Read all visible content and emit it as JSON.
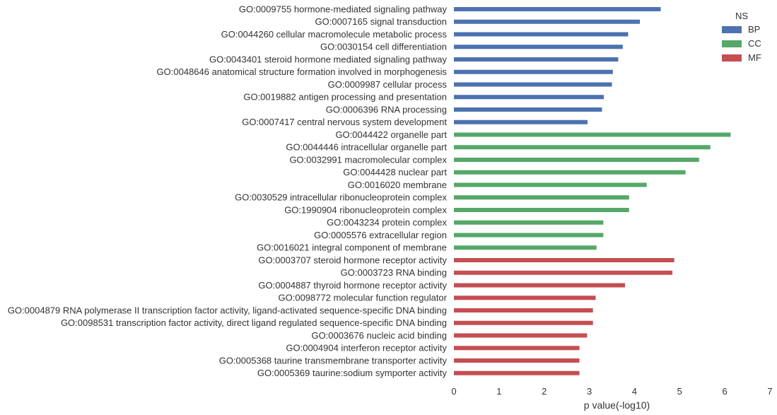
{
  "chart_data": {
    "type": "bar",
    "orientation": "horizontal",
    "xlabel": "p value(-log10)",
    "ylabel": "",
    "title": "",
    "xlim": [
      0,
      7
    ],
    "xticks": [
      "0",
      "1",
      "2",
      "3",
      "4",
      "5",
      "6",
      "7"
    ],
    "grid": false,
    "legend": {
      "title": "NS",
      "placement": "top-right",
      "entries": [
        {
          "name": "BP",
          "color": "#4c72b0"
        },
        {
          "name": "CC",
          "color": "#55a868"
        },
        {
          "name": "MF",
          "color": "#c44e52"
        }
      ]
    },
    "categories": [
      "GO:0009755 hormone-mediated signaling pathway",
      "GO:0007165 signal transduction",
      "GO:0044260 cellular macromolecule metabolic process",
      "GO:0030154 cell differentiation",
      "GO:0043401 steroid hormone mediated signaling pathway",
      "GO:0048646 anatomical structure formation involved in morphogenesis",
      "GO:0009987 cellular process",
      "GO:0019882 antigen processing and presentation",
      "GO:0006396 RNA processing",
      "GO:0007417 central nervous system development",
      "GO:0044422 organelle part",
      "GO:0044446 intracellular organelle part",
      "GO:0032991 macromolecular complex",
      "GO:0044428 nuclear part",
      "GO:0016020 membrane",
      "GO:0030529 intracellular ribonucleoprotein complex",
      "GO:1990904 ribonucleoprotein complex",
      "GO:0043234 protein complex",
      "GO:0005576 extracellular region",
      "GO:0016021 integral component of membrane",
      "GO:0003707 steroid hormone receptor activity",
      "GO:0003723 RNA binding",
      "GO:0004887 thyroid hormone receptor activity",
      "GO:0098772 molecular function regulator",
      "GO:0004879 RNA polymerase II transcription factor activity, ligand-activated sequence-specific DNA binding",
      "GO:0098531 transcription factor activity, direct ligand regulated sequence-specific DNA binding",
      "GO:0003676 nucleic acid binding",
      "GO:0004904 interferon receptor activity",
      "GO:0005368 taurine transmembrane transporter activity",
      "GO:0005369 taurine:sodium symporter activity"
    ],
    "series": [
      {
        "name": "BP",
        "color": "#4c72b0",
        "values": [
          4.58,
          4.12,
          3.86,
          3.74,
          3.64,
          3.52,
          3.5,
          3.32,
          3.28,
          2.96,
          null,
          null,
          null,
          null,
          null,
          null,
          null,
          null,
          null,
          null,
          null,
          null,
          null,
          null,
          null,
          null,
          null,
          null,
          null,
          null
        ]
      },
      {
        "name": "CC",
        "color": "#55a868",
        "values": [
          null,
          null,
          null,
          null,
          null,
          null,
          null,
          null,
          null,
          null,
          6.13,
          5.68,
          5.43,
          5.13,
          4.27,
          3.88,
          3.88,
          3.31,
          3.31,
          3.16,
          null,
          null,
          null,
          null,
          null,
          null,
          null,
          null,
          null,
          null
        ]
      },
      {
        "name": "MF",
        "color": "#c44e52",
        "values": [
          null,
          null,
          null,
          null,
          null,
          null,
          null,
          null,
          null,
          null,
          null,
          null,
          null,
          null,
          null,
          null,
          null,
          null,
          null,
          null,
          4.88,
          4.84,
          3.79,
          3.14,
          3.08,
          3.08,
          2.95,
          2.78,
          2.78,
          2.78
        ]
      }
    ]
  }
}
